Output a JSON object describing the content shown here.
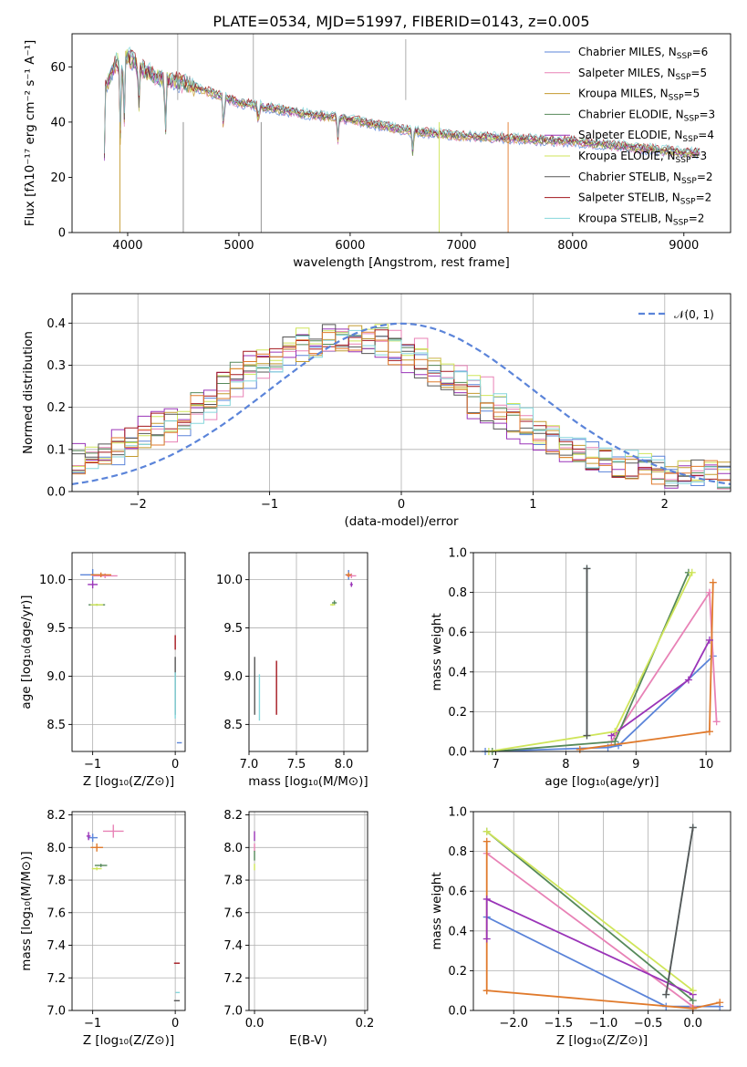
{
  "colors": {
    "chabrier_miles": "#5b84d9",
    "salpeter_miles": "#e882b6",
    "kroupa_miles": "#c49a2e",
    "chabrier_elodie": "#56895a",
    "salpeter_elodie": "#9a34b8",
    "kroupa_elodie": "#cfe55a",
    "chabrier_stelib": "#555555",
    "salpeter_stelib": "#a3161d",
    "kroupa_stelib": "#85d6db",
    "orange": "#e07a2c"
  },
  "chart_data": [
    {
      "id": "spectrum",
      "type": "line",
      "title": "PLATE=0534, MJD=51997, FIBERID=0143, z=0.005",
      "xlabel": "wavelength [Angstrom, rest frame]",
      "ylabel": "Flux [fλ10⁻¹⁷ erg cm⁻² s⁻¹ A⁻¹]",
      "xlim": [
        3500,
        9420
      ],
      "ylim": [
        0,
        72
      ],
      "xticks": [
        "4000",
        "5000",
        "6000",
        "7000",
        "8000",
        "9000"
      ],
      "yticks": [
        "0",
        "20",
        "40",
        "60"
      ],
      "continuum": [
        [
          3800,
          53
        ],
        [
          3900,
          62
        ],
        [
          4000,
          64
        ],
        [
          4100,
          60
        ],
        [
          4300,
          56
        ],
        [
          4500,
          54
        ],
        [
          4800,
          50
        ],
        [
          5000,
          47
        ],
        [
          5300,
          45
        ],
        [
          5600,
          43
        ],
        [
          6000,
          41
        ],
        [
          6500,
          37
        ],
        [
          7000,
          35
        ],
        [
          7500,
          34
        ],
        [
          8000,
          33
        ],
        [
          8500,
          31
        ],
        [
          9000,
          29
        ],
        [
          9150,
          29
        ]
      ],
      "legend": [
        {
          "label": "Chabrier MILES, N",
          "sub": "SSP",
          "n": "=6",
          "color": "#5b84d9"
        },
        {
          "label": "Salpeter MILES, N",
          "sub": "SSP",
          "n": "=5",
          "color": "#e882b6"
        },
        {
          "label": "Kroupa MILES, N",
          "sub": "SSP",
          "n": "=5",
          "color": "#c49a2e"
        },
        {
          "label": "Chabrier ELODIE, N",
          "sub": "SSP",
          "n": "=3",
          "color": "#56895a"
        },
        {
          "label": "Salpeter ELODIE, N",
          "sub": "SSP",
          "n": "=4",
          "color": "#9a34b8"
        },
        {
          "label": "Kroupa ELODIE, N",
          "sub": "SSP",
          "n": "=3",
          "color": "#cfe55a"
        },
        {
          "label": "Chabrier STELIB, N",
          "sub": "SSP",
          "n": "=2",
          "color": "#555555"
        },
        {
          "label": "Salpeter STELIB, N",
          "sub": "SSP",
          "n": "=2",
          "color": "#a3161d"
        },
        {
          "label": "Kroupa STELIB, N",
          "sub": "SSP",
          "n": "=2",
          "color": "#85d6db"
        }
      ]
    },
    {
      "id": "residuals",
      "type": "line",
      "xlabel": "(data-model)/error",
      "ylabel": "Normed distribution",
      "xlim": [
        -2.5,
        2.5
      ],
      "ylim": [
        0,
        0.47
      ],
      "xticks": [
        "−2",
        "−1",
        "0",
        "1",
        "2"
      ],
      "yticks": [
        "0.0",
        "0.1",
        "0.2",
        "0.3",
        "0.4"
      ],
      "legend": "𝒩(0, 1)",
      "series": [
        {
          "color": "#5b84d9",
          "peak": 0.33,
          "shift": -0.35
        },
        {
          "color": "#e882b6",
          "peak": 0.34,
          "shift": -0.3
        },
        {
          "color": "#c49a2e",
          "peak": 0.33,
          "shift": -0.4
        },
        {
          "color": "#56895a",
          "peak": 0.34,
          "shift": -0.45
        },
        {
          "color": "#9a34b8",
          "peak": 0.33,
          "shift": -0.55
        },
        {
          "color": "#cfe55a",
          "peak": 0.35,
          "shift": -0.4
        },
        {
          "color": "#555555",
          "peak": 0.33,
          "shift": -0.5
        },
        {
          "color": "#a3161d",
          "peak": 0.34,
          "shift": -0.5
        },
        {
          "color": "#85d6db",
          "peak": 0.33,
          "shift": -0.35
        },
        {
          "color": "#e07a2c",
          "peak": 0.32,
          "shift": -0.45
        }
      ]
    },
    {
      "id": "age_vs_Z",
      "type": "scatter",
      "xlabel": "Z [log₁₀(Z/Z⊙)]",
      "ylabel": "age  [log₁₀(age/yr)]",
      "xlim": [
        -1.25,
        0.12
      ],
      "ylim": [
        8.22,
        10.28
      ],
      "xticks": [
        "−1",
        "0"
      ],
      "yticks": [
        "8.5",
        "9.0",
        "9.5",
        "10.0"
      ],
      "points": [
        {
          "x": -1.0,
          "y": 10.05,
          "dx": 0.3,
          "dy": 0.12,
          "color": "#5b84d9"
        },
        {
          "x": -0.85,
          "y": 10.04,
          "dx": 0.3,
          "dy": 0.05,
          "color": "#e882b6"
        },
        {
          "x": -0.9,
          "y": 10.05,
          "dx": 0.25,
          "dy": 0.05,
          "color": "#e07a2c"
        },
        {
          "x": -1.0,
          "y": 9.95,
          "dx": 0.12,
          "dy": 0.08,
          "color": "#9a34b8"
        },
        {
          "x": -0.95,
          "y": 9.74,
          "dx": 0.2,
          "dy": 0.02,
          "color": "#56895a"
        },
        {
          "x": -0.95,
          "y": 9.74,
          "dx": 0.15,
          "dy": 0.02,
          "color": "#cfe55a"
        },
        {
          "x": 0.0,
          "y": 9.35,
          "dx": 0.0,
          "dy": 0.15,
          "color": "#a3161d"
        },
        {
          "x": 0.0,
          "y": 8.9,
          "dx": 0.0,
          "dy": 0.6,
          "color": "#555555"
        },
        {
          "x": 0.0,
          "y": 8.8,
          "dx": 0.0,
          "dy": 0.48,
          "color": "#85d6db"
        },
        {
          "x": 0.05,
          "y": 8.31,
          "dx": 0.06,
          "dy": 0.0,
          "color": "#5b84d9"
        }
      ]
    },
    {
      "id": "age_vs_mass",
      "type": "scatter",
      "xlabel": "mass [log₁₀(M/M⊙)]",
      "ylabel": "",
      "xlim": [
        7.0,
        8.25
      ],
      "ylim": [
        8.22,
        10.28
      ],
      "xticks": [
        "7.0",
        "7.5",
        "8.0"
      ],
      "yticks": [
        "8.5",
        "9.0",
        "9.5",
        "10.0"
      ],
      "points": [
        {
          "x": 8.05,
          "y": 10.05,
          "dx": 0.07,
          "dy": 0.1,
          "color": "#5b84d9"
        },
        {
          "x": 8.08,
          "y": 10.04,
          "dx": 0.1,
          "dy": 0.05,
          "color": "#e882b6"
        },
        {
          "x": 8.05,
          "y": 10.05,
          "dx": 0.06,
          "dy": 0.05,
          "color": "#e07a2c"
        },
        {
          "x": 8.08,
          "y": 9.95,
          "dx": 0.03,
          "dy": 0.05,
          "color": "#9a34b8"
        },
        {
          "x": 7.9,
          "y": 9.76,
          "dx": 0.05,
          "dy": 0.05,
          "color": "#56895a"
        },
        {
          "x": 7.88,
          "y": 9.74,
          "dx": 0.05,
          "dy": 0.02,
          "color": "#cfe55a"
        },
        {
          "x": 7.06,
          "y": 8.9,
          "dx": 0.0,
          "dy": 0.6,
          "color": "#555555"
        },
        {
          "x": 7.11,
          "y": 8.78,
          "dx": 0.0,
          "dy": 0.48,
          "color": "#85d6db"
        },
        {
          "x": 7.29,
          "y": 8.88,
          "dx": 0.0,
          "dy": 0.56,
          "color": "#a3161d"
        }
      ]
    },
    {
      "id": "weight_vs_age",
      "type": "line",
      "xlabel": "age  [log₁₀(age/yr)]",
      "ylabel": "mass weight",
      "xlim": [
        6.68,
        10.35
      ],
      "ylim": [
        0,
        1.0
      ],
      "xticks": [
        "7",
        "8",
        "9",
        "10"
      ],
      "yticks": [
        "0.0",
        "0.2",
        "0.4",
        "0.6",
        "0.8",
        "1.0"
      ],
      "series": [
        {
          "color": "#5b84d9",
          "points": [
            [
              6.85,
              0.0
            ],
            [
              8.6,
              0.02
            ],
            [
              8.75,
              0.03
            ],
            [
              10.1,
              0.48
            ]
          ]
        },
        {
          "color": "#e882b6",
          "points": [
            [
              8.65,
              0.05
            ],
            [
              10.05,
              0.8
            ],
            [
              10.15,
              0.15
            ]
          ]
        },
        {
          "color": "#e07a2c",
          "points": [
            [
              8.2,
              0.01
            ],
            [
              10.05,
              0.1
            ],
            [
              10.1,
              0.85
            ]
          ]
        },
        {
          "color": "#56895a",
          "points": [
            [
              6.95,
              0.0
            ],
            [
              8.7,
              0.05
            ],
            [
              9.75,
              0.9
            ]
          ]
        },
        {
          "color": "#9a34b8",
          "points": [
            [
              8.65,
              0.08
            ],
            [
              9.75,
              0.36
            ],
            [
              10.05,
              0.56
            ]
          ]
        },
        {
          "color": "#cfe55a",
          "points": [
            [
              6.9,
              0.0
            ],
            [
              8.7,
              0.1
            ],
            [
              9.8,
              0.9
            ]
          ]
        },
        {
          "color": "#85d6db",
          "points": [
            [
              8.3,
              0.08
            ],
            [
              8.3,
              0.92
            ]
          ]
        },
        {
          "color": "#555555",
          "points": [
            [
              8.3,
              0.08
            ],
            [
              8.3,
              0.92
            ]
          ]
        }
      ]
    },
    {
      "id": "mass_vs_Z",
      "type": "scatter",
      "xlabel": "Z [log₁₀(Z/Z⊙)]",
      "ylabel": "mass [log₁₀(M/M⊙)]",
      "xlim": [
        -1.25,
        0.12
      ],
      "ylim": [
        7.0,
        8.22
      ],
      "xticks": [
        "−1",
        "0"
      ],
      "yticks": [
        "7.0",
        "7.2",
        "7.4",
        "7.6",
        "7.8",
        "8.0",
        "8.2"
      ],
      "points": [
        {
          "x": -1.0,
          "y": 8.06,
          "dx": 0.12,
          "dy": 0.05,
          "color": "#5b84d9"
        },
        {
          "x": -0.75,
          "y": 8.1,
          "dx": 0.25,
          "dy": 0.08,
          "color": "#e882b6"
        },
        {
          "x": -0.95,
          "y": 8.0,
          "dx": 0.15,
          "dy": 0.05,
          "color": "#e07a2c"
        },
        {
          "x": -1.05,
          "y": 8.07,
          "dx": 0.05,
          "dy": 0.05,
          "color": "#9a34b8"
        },
        {
          "x": -0.9,
          "y": 7.89,
          "dx": 0.15,
          "dy": 0.02,
          "color": "#56895a"
        },
        {
          "x": -0.95,
          "y": 7.87,
          "dx": 0.12,
          "dy": 0.02,
          "color": "#cfe55a"
        },
        {
          "x": 0.02,
          "y": 7.29,
          "dx": 0.07,
          "dy": 0.0,
          "color": "#a3161d"
        },
        {
          "x": 0.03,
          "y": 7.11,
          "dx": 0.05,
          "dy": 0.0,
          "color": "#85d6db"
        },
        {
          "x": 0.02,
          "y": 7.06,
          "dx": 0.07,
          "dy": 0.0,
          "color": "#555555"
        }
      ]
    },
    {
      "id": "mass_vs_ebv",
      "type": "scatter",
      "xlabel": "E(B-V)",
      "ylabel": "",
      "xlim": [
        -0.01,
        0.205
      ],
      "ylim": [
        7.0,
        8.22
      ],
      "xticks": [
        "0.0",
        "0.2"
      ],
      "yticks": [
        "7.0",
        "7.2",
        "7.4",
        "7.6",
        "7.8",
        "8.0",
        "8.2"
      ],
      "points": [
        {
          "x": 0.0,
          "y": 8.07,
          "dx": 0.0,
          "dy": 0.06,
          "color": "#9a34b8"
        },
        {
          "x": 0.0,
          "y": 8.0,
          "dx": 0.0,
          "dy": 0.05,
          "color": "#e882b6"
        },
        {
          "x": 0.0,
          "y": 7.95,
          "dx": 0.0,
          "dy": 0.06,
          "color": "#56895a"
        },
        {
          "x": 0.0,
          "y": 7.88,
          "dx": 0.0,
          "dy": 0.04,
          "color": "#cfe55a"
        }
      ]
    },
    {
      "id": "weight_vs_Z",
      "type": "line",
      "xlabel": "Z [log₁₀(Z/Z⊙)]",
      "ylabel": "mass weight",
      "xlim": [
        -2.45,
        0.42
      ],
      "ylim": [
        0,
        1.0
      ],
      "xticks": [
        "−2.0",
        "−1.5",
        "−1.0",
        "−0.5",
        "0.0"
      ],
      "yticks": [
        "0.0",
        "0.2",
        "0.4",
        "0.6",
        "0.8",
        "1.0"
      ],
      "series": [
        {
          "color": "#5b84d9",
          "points": [
            [
              -2.3,
              0.47
            ],
            [
              -0.3,
              0.02
            ],
            [
              0.3,
              0.02
            ]
          ]
        },
        {
          "color": "#e882b6",
          "points": [
            [
              -2.3,
              0.79
            ],
            [
              0.0,
              0.02
            ]
          ]
        },
        {
          "color": "#e07a2c",
          "points": [
            [
              -2.3,
              0.1
            ],
            [
              -2.3,
              0.85
            ],
            [
              -2.3,
              0.1
            ],
            [
              0.0,
              0.01
            ],
            [
              0.3,
              0.04
            ]
          ]
        },
        {
          "color": "#56895a",
          "points": [
            [
              -2.3,
              0.9
            ],
            [
              0.0,
              0.05
            ]
          ]
        },
        {
          "color": "#9a34b8",
          "points": [
            [
              -2.3,
              0.36
            ],
            [
              -2.3,
              0.56
            ],
            [
              0.0,
              0.08
            ]
          ]
        },
        {
          "color": "#cfe55a",
          "points": [
            [
              -2.3,
              0.9
            ],
            [
              0.0,
              0.1
            ]
          ]
        },
        {
          "color": "#85d6db",
          "points": [
            [
              -0.3,
              0.08
            ],
            [
              0.0,
              0.92
            ]
          ]
        },
        {
          "color": "#555555",
          "points": [
            [
              -0.3,
              0.08
            ],
            [
              0.0,
              0.92
            ]
          ]
        }
      ]
    }
  ]
}
